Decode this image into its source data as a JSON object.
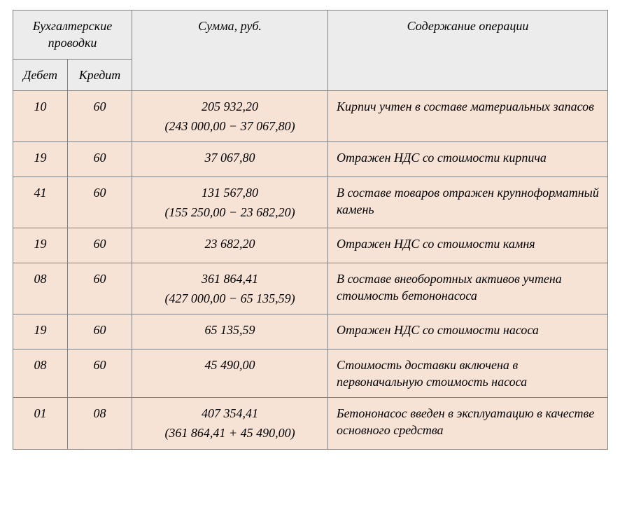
{
  "table": {
    "headers": {
      "entries": "Бухгалтерские проводки",
      "debit": "Дебет",
      "credit": "Кредит",
      "amount": "Сумма, руб.",
      "description": "Содержание операции"
    },
    "rows": [
      {
        "debit": "10",
        "credit": "60",
        "amount_main": "205 932,20",
        "amount_calc": "(243 000,00 − 37 067,80)",
        "description": "Кирпич учтен в составе материальных запасов"
      },
      {
        "debit": "19",
        "credit": "60",
        "amount_main": "37 067,80",
        "amount_calc": "",
        "description": "Отражен НДС со стоимости кирпича"
      },
      {
        "debit": "41",
        "credit": "60",
        "amount_main": "131 567,80",
        "amount_calc": "(155 250,00 − 23 682,20)",
        "description": "В составе товаров отражен крупноформатный камень"
      },
      {
        "debit": "19",
        "credit": "60",
        "amount_main": "23 682,20",
        "amount_calc": "",
        "description": "Отражен НДС со стоимости камня"
      },
      {
        "debit": "08",
        "credit": "60",
        "amount_main": "361 864,41",
        "amount_calc": "(427 000,00 − 65 135,59)",
        "description": "В составе внеоборотных активов учтена стоимость бетононасоса"
      },
      {
        "debit": "19",
        "credit": "60",
        "amount_main": "65 135,59",
        "amount_calc": "",
        "description": "Отражен НДС со стоимости насоса"
      },
      {
        "debit": "08",
        "credit": "60",
        "amount_main": "45 490,00",
        "amount_calc": "",
        "description": "Стоимость доставки включена в первоначальную стоимость насоса"
      },
      {
        "debit": "01",
        "credit": "08",
        "amount_main": "407 354,41",
        "amount_calc": "(361 864,41 + 45 490,00)",
        "description": "Бетононасос введен в эксплуатацию в качестве основного средства"
      }
    ],
    "style": {
      "header_bg": "#ececec",
      "body_bg": "#f7e2d6",
      "border_color": "#808080",
      "text_color": "#000000",
      "font_family": "Times New Roman",
      "font_size_pt": 14,
      "italic": true
    }
  }
}
